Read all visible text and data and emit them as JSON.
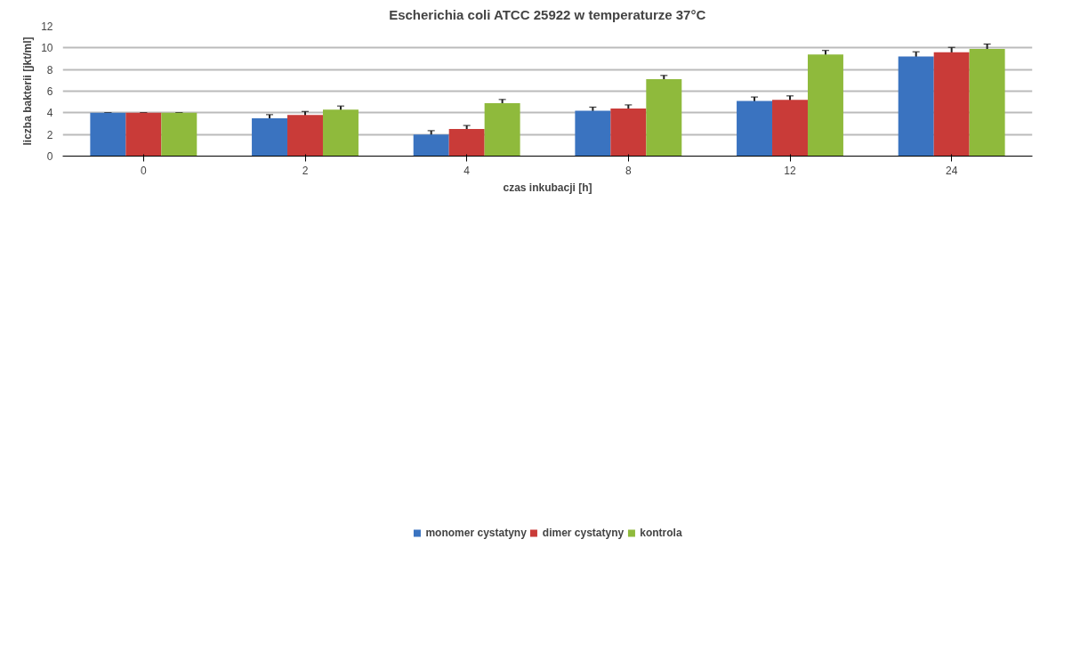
{
  "chart_data": {
    "type": "bar",
    "title": "Escherichia coli ATCC 25922 w temperaturze 37°C",
    "xlabel": "czas inkubacji [h]",
    "ylabel": "liczba bakterii [jkt/ml]",
    "categories": [
      "0",
      "2",
      "4",
      "8",
      "12",
      "24"
    ],
    "series": [
      {
        "name": "monomer cystatyny",
        "color": "#3a73c0",
        "values": [
          4.0,
          3.5,
          2.0,
          4.2,
          5.1,
          9.2
        ],
        "errors": [
          0,
          0.33,
          0.35,
          0.33,
          0.36,
          0.44
        ]
      },
      {
        "name": "dimer cystatyny",
        "color": "#c93b38",
        "values": [
          4.0,
          3.8,
          2.5,
          4.4,
          5.2,
          9.6
        ],
        "errors": [
          0,
          0.33,
          0.33,
          0.33,
          0.36,
          0.45
        ]
      },
      {
        "name": "kontrola",
        "color": "#8fba3c",
        "values": [
          4.0,
          4.3,
          4.9,
          7.1,
          9.4,
          9.9
        ],
        "errors": [
          0,
          0.33,
          0.33,
          0.35,
          0.36,
          0.45
        ]
      }
    ],
    "ylim": [
      0,
      12
    ],
    "yticks": [
      0,
      2,
      4,
      6,
      8,
      10,
      12
    ],
    "grid": "y",
    "legend": "bottom"
  }
}
